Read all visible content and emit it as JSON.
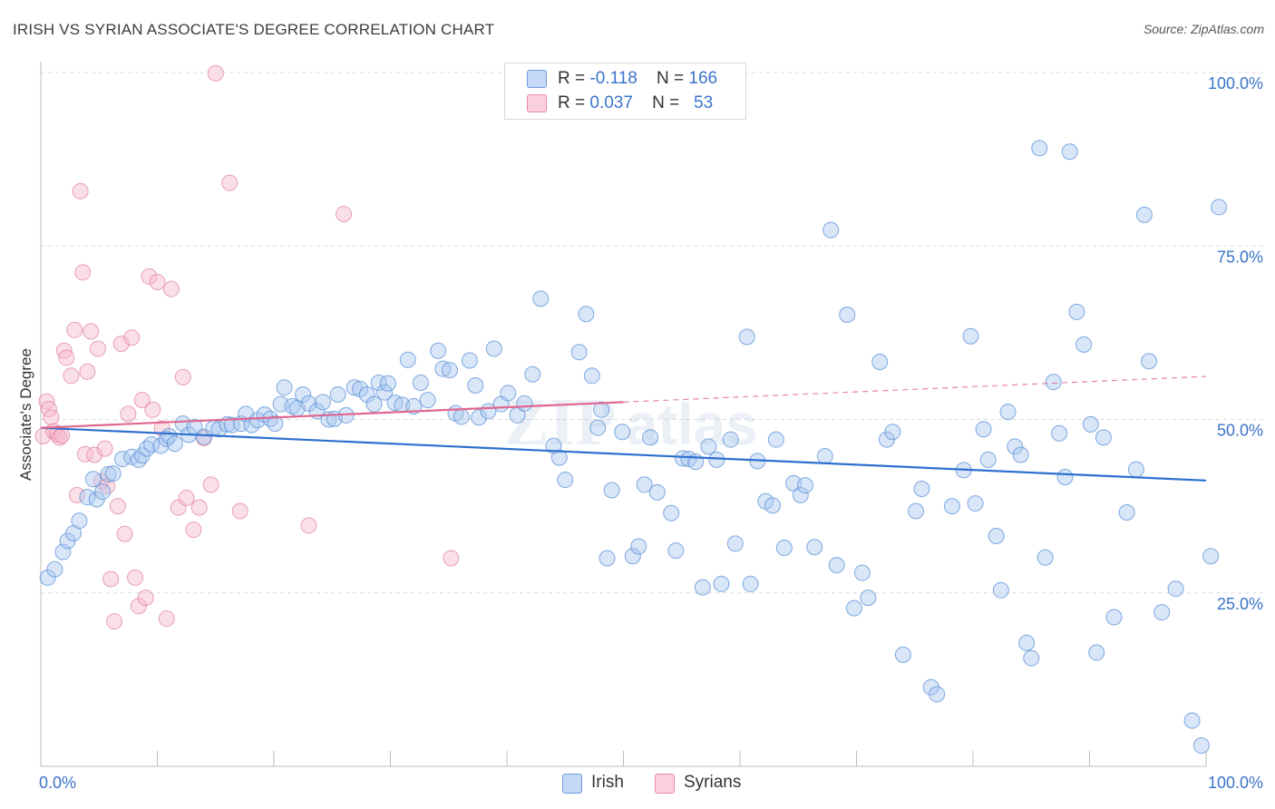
{
  "header": {
    "title": "IRISH VS SYRIAN ASSOCIATE'S DEGREE CORRELATION CHART",
    "source": "Source: ZipAtlas.com"
  },
  "watermark": {
    "text_zip": "ZIP",
    "text_atlas": "atlas"
  },
  "legend_top": {
    "rows": [
      {
        "r_label": "R =",
        "r_value": "-0.118",
        "n_label": "N =",
        "n_value": "166",
        "color": "#a9c8f0"
      },
      {
        "r_label": "R =",
        "r_value": "0.037",
        "n_label": "N =",
        "n_value": "53",
        "color": "#f6b8ca"
      }
    ]
  },
  "legend_bottom": {
    "items": [
      {
        "label": "Irish",
        "color": "#a9c8f0"
      },
      {
        "label": "Syrians",
        "color": "#f6b8ca"
      }
    ]
  },
  "colors": {
    "irish_fill": "#a9c8f0",
    "irish_stroke": "#5b8fd6",
    "irish_line": "#2e70cf",
    "syrian_fill": "#f6b8ca",
    "syrian_stroke": "#e07d9c",
    "syrian_line": "#e06790",
    "grid": "#dcdcdc",
    "axis_label": "#3a74c9"
  },
  "chart_data": {
    "type": "scatter",
    "title": "IRISH VS SYRIAN ASSOCIATE'S DEGREE CORRELATION CHART",
    "xlabel": "",
    "ylabel": "Associate's Degree",
    "xlim": [
      0,
      100
    ],
    "ylim": [
      0,
      100
    ],
    "x_tick_labels": [
      "0.0%",
      "100.0%"
    ],
    "y_tick_labels": [
      "25.0%",
      "50.0%",
      "75.0%",
      "100.0%"
    ],
    "y_ticks": [
      25,
      50,
      75,
      100
    ],
    "grid": true,
    "legend_position": "top-center",
    "series": [
      {
        "name": "Irish",
        "R": -0.118,
        "N": 166,
        "trend": {
          "x": [
            0,
            100
          ],
          "y": [
            48.8,
            41.2
          ]
        },
        "points": [
          [
            0.6,
            27.2
          ],
          [
            1.2,
            28.4
          ],
          [
            1.9,
            30.9
          ],
          [
            2.3,
            32.5
          ],
          [
            2.8,
            33.6
          ],
          [
            3.3,
            35.4
          ],
          [
            4.0,
            38.8
          ],
          [
            4.5,
            41.4
          ],
          [
            4.8,
            38.5
          ],
          [
            5.3,
            39.6
          ],
          [
            5.8,
            42.1
          ],
          [
            6.2,
            42.2
          ],
          [
            7.0,
            44.3
          ],
          [
            7.8,
            44.6
          ],
          [
            8.4,
            44.2
          ],
          [
            8.7,
            44.8
          ],
          [
            9.1,
            45.8
          ],
          [
            9.5,
            46.4
          ],
          [
            10.3,
            46.2
          ],
          [
            10.8,
            47.2
          ],
          [
            11.0,
            47.6
          ],
          [
            11.5,
            46.5
          ],
          [
            12.2,
            49.4
          ],
          [
            12.7,
            47.8
          ],
          [
            13.2,
            48.9
          ],
          [
            14.0,
            47.5
          ],
          [
            14.8,
            48.7
          ],
          [
            15.3,
            48.6
          ],
          [
            16.0,
            49.3
          ],
          [
            16.4,
            49.2
          ],
          [
            17.2,
            49.4
          ],
          [
            17.6,
            50.8
          ],
          [
            18.1,
            49.2
          ],
          [
            18.6,
            49.9
          ],
          [
            19.2,
            50.7
          ],
          [
            19.7,
            50.1
          ],
          [
            20.1,
            49.4
          ],
          [
            20.6,
            52.2
          ],
          [
            20.9,
            54.6
          ],
          [
            21.6,
            51.9
          ],
          [
            22.0,
            51.6
          ],
          [
            22.5,
            53.6
          ],
          [
            23.0,
            52.3
          ],
          [
            23.7,
            51.2
          ],
          [
            24.2,
            52.5
          ],
          [
            24.7,
            50.0
          ],
          [
            25.2,
            50.1
          ],
          [
            25.5,
            53.6
          ],
          [
            26.2,
            50.6
          ],
          [
            26.9,
            54.6
          ],
          [
            27.4,
            54.4
          ],
          [
            28.0,
            53.6
          ],
          [
            28.6,
            52.2
          ],
          [
            29.0,
            55.3
          ],
          [
            29.5,
            53.9
          ],
          [
            29.8,
            55.2
          ],
          [
            30.4,
            52.4
          ],
          [
            31.0,
            52.1
          ],
          [
            31.5,
            58.6
          ],
          [
            32.0,
            51.9
          ],
          [
            32.6,
            55.3
          ],
          [
            33.2,
            52.8
          ],
          [
            34.1,
            59.9
          ],
          [
            34.5,
            57.3
          ],
          [
            35.1,
            57.1
          ],
          [
            35.6,
            50.9
          ],
          [
            36.1,
            50.4
          ],
          [
            36.8,
            58.5
          ],
          [
            37.3,
            54.9
          ],
          [
            37.6,
            50.3
          ],
          [
            38.4,
            51.2
          ],
          [
            38.9,
            60.2
          ],
          [
            39.5,
            52.2
          ],
          [
            40.1,
            53.8
          ],
          [
            40.9,
            50.6
          ],
          [
            41.5,
            52.3
          ],
          [
            42.2,
            56.5
          ],
          [
            42.9,
            67.4
          ],
          [
            44.0,
            46.2
          ],
          [
            44.5,
            44.5
          ],
          [
            45.0,
            41.3
          ],
          [
            46.2,
            59.7
          ],
          [
            46.8,
            65.2
          ],
          [
            47.3,
            56.3
          ],
          [
            47.8,
            48.8
          ],
          [
            48.1,
            51.4
          ],
          [
            48.6,
            30.0
          ],
          [
            49.0,
            39.8
          ],
          [
            49.9,
            48.2
          ],
          [
            50.8,
            30.3
          ],
          [
            51.3,
            31.7
          ],
          [
            51.8,
            40.6
          ],
          [
            52.3,
            47.4
          ],
          [
            52.9,
            39.5
          ],
          [
            54.1,
            36.5
          ],
          [
            54.5,
            31.1
          ],
          [
            55.1,
            44.4
          ],
          [
            55.6,
            44.3
          ],
          [
            56.2,
            43.9
          ],
          [
            56.8,
            25.8
          ],
          [
            57.3,
            46.1
          ],
          [
            58.0,
            44.2
          ],
          [
            58.4,
            26.3
          ],
          [
            59.2,
            47.1
          ],
          [
            59.6,
            32.1
          ],
          [
            60.6,
            61.9
          ],
          [
            60.9,
            26.3
          ],
          [
            61.5,
            44.0
          ],
          [
            62.2,
            38.2
          ],
          [
            62.8,
            37.6
          ],
          [
            63.1,
            47.1
          ],
          [
            63.8,
            31.5
          ],
          [
            64.6,
            40.8
          ],
          [
            65.2,
            39.1
          ],
          [
            65.6,
            40.5
          ],
          [
            66.4,
            31.6
          ],
          [
            67.3,
            44.7
          ],
          [
            67.8,
            77.3
          ],
          [
            68.3,
            29.0
          ],
          [
            69.2,
            65.1
          ],
          [
            69.8,
            22.8
          ],
          [
            70.5,
            27.9
          ],
          [
            71.0,
            24.3
          ],
          [
            72.0,
            58.3
          ],
          [
            72.6,
            47.1
          ],
          [
            73.1,
            48.2
          ],
          [
            74.0,
            16.1
          ],
          [
            75.1,
            36.8
          ],
          [
            75.6,
            40.0
          ],
          [
            76.4,
            11.4
          ],
          [
            76.9,
            10.4
          ],
          [
            78.2,
            37.5
          ],
          [
            79.2,
            42.7
          ],
          [
            79.8,
            62.0
          ],
          [
            80.2,
            37.9
          ],
          [
            80.9,
            48.6
          ],
          [
            81.3,
            44.2
          ],
          [
            82.0,
            33.2
          ],
          [
            82.4,
            25.4
          ],
          [
            83.0,
            51.1
          ],
          [
            83.6,
            46.1
          ],
          [
            84.1,
            44.9
          ],
          [
            84.6,
            17.8
          ],
          [
            85.0,
            15.6
          ],
          [
            85.7,
            89.1
          ],
          [
            86.2,
            30.1
          ],
          [
            86.9,
            55.4
          ],
          [
            87.4,
            48.0
          ],
          [
            87.9,
            41.7
          ],
          [
            88.3,
            88.6
          ],
          [
            88.9,
            65.5
          ],
          [
            89.5,
            60.8
          ],
          [
            90.1,
            49.3
          ],
          [
            90.6,
            16.4
          ],
          [
            91.2,
            47.4
          ],
          [
            92.1,
            21.5
          ],
          [
            93.2,
            36.6
          ],
          [
            94.0,
            42.8
          ],
          [
            94.7,
            79.5
          ],
          [
            95.1,
            58.4
          ],
          [
            96.2,
            22.2
          ],
          [
            97.4,
            25.6
          ],
          [
            98.8,
            6.6
          ],
          [
            99.6,
            3.0
          ],
          [
            100.4,
            30.3
          ],
          [
            101.1,
            80.6
          ]
        ]
      },
      {
        "name": "Syrians",
        "R": 0.037,
        "N": 53,
        "trend": {
          "x": [
            0,
            50
          ],
          "y": [
            48.8,
            52.5
          ],
          "dashed_to": {
            "x": 100,
            "y": 56.2
          }
        },
        "points": [
          [
            0.2,
            47.6
          ],
          [
            0.5,
            52.6
          ],
          [
            0.7,
            51.5
          ],
          [
            0.9,
            50.3
          ],
          [
            1.1,
            48.3
          ],
          [
            1.4,
            47.9
          ],
          [
            1.6,
            47.4
          ],
          [
            1.8,
            47.7
          ],
          [
            2.0,
            59.9
          ],
          [
            2.2,
            58.9
          ],
          [
            2.6,
            56.3
          ],
          [
            2.9,
            62.9
          ],
          [
            3.1,
            39.1
          ],
          [
            3.4,
            82.9
          ],
          [
            3.6,
            71.2
          ],
          [
            3.8,
            45.0
          ],
          [
            4.0,
            56.9
          ],
          [
            4.3,
            62.7
          ],
          [
            4.6,
            44.9
          ],
          [
            4.9,
            60.2
          ],
          [
            5.2,
            41.1
          ],
          [
            5.5,
            45.8
          ],
          [
            5.7,
            40.4
          ],
          [
            6.0,
            27.0
          ],
          [
            6.3,
            20.9
          ],
          [
            6.6,
            37.5
          ],
          [
            6.9,
            60.9
          ],
          [
            7.2,
            33.5
          ],
          [
            7.5,
            50.8
          ],
          [
            7.8,
            61.8
          ],
          [
            8.1,
            27.2
          ],
          [
            8.4,
            23.1
          ],
          [
            8.7,
            52.8
          ],
          [
            9.0,
            24.3
          ],
          [
            9.3,
            70.6
          ],
          [
            9.6,
            51.4
          ],
          [
            10.0,
            69.8
          ],
          [
            10.4,
            48.7
          ],
          [
            10.8,
            21.3
          ],
          [
            11.2,
            68.8
          ],
          [
            11.8,
            37.3
          ],
          [
            12.2,
            56.1
          ],
          [
            12.5,
            38.7
          ],
          [
            13.1,
            34.1
          ],
          [
            13.6,
            37.3
          ],
          [
            14.0,
            47.3
          ],
          [
            14.6,
            40.6
          ],
          [
            15.0,
            99.9
          ],
          [
            16.2,
            84.1
          ],
          [
            17.1,
            36.8
          ],
          [
            23.0,
            34.7
          ],
          [
            26.0,
            79.6
          ],
          [
            35.2,
            30.0
          ]
        ]
      }
    ]
  }
}
